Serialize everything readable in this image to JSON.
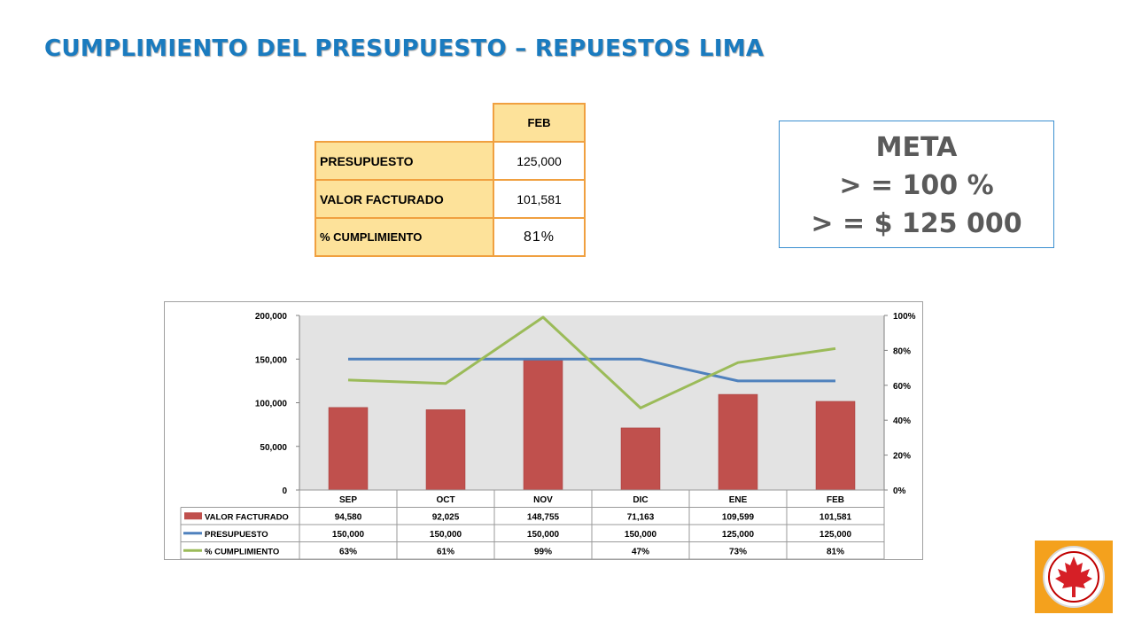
{
  "title": "CUMPLIMIENTO DEL PRESUPUESTO – REPUESTOS LIMA",
  "summary_table": {
    "month_header": "FEB",
    "rows": [
      {
        "label": "PRESUPUESTO",
        "value": "125,000"
      },
      {
        "label": "VALOR FACTURADO",
        "value": "101,581"
      },
      {
        "label": "% CUMPLIMIENTO",
        "value": "81%"
      }
    ]
  },
  "meta": {
    "line1": "META",
    "line2": "> = 100 %",
    "line3": "> = $ 125 000"
  },
  "colors": {
    "title": "#1a7bbf",
    "bar": "#c0504d",
    "budget_line": "#4f81bd",
    "pct_line": "#9bbb59",
    "table_header_fill": "#fde29a",
    "table_border": "#f0a040",
    "logo_bg": "#f4a11d"
  },
  "chart_data": {
    "type": "bar",
    "categories": [
      "SEP",
      "OCT",
      "NOV",
      "DIC",
      "ENE",
      "FEB"
    ],
    "series": [
      {
        "name": "VALOR FACTURADO",
        "type": "bar",
        "axis": "left",
        "values": [
          94580,
          92025,
          148755,
          71163,
          109599,
          101581
        ],
        "labels": [
          "94,580",
          "92,025",
          "148,755",
          "71,163",
          "109,599",
          "101,581"
        ]
      },
      {
        "name": "PRESUPUESTO",
        "type": "line",
        "axis": "left",
        "values": [
          150000,
          150000,
          150000,
          150000,
          125000,
          125000
        ],
        "labels": [
          "150,000",
          "150,000",
          "150,000",
          "150,000",
          "125,000",
          "125,000"
        ]
      },
      {
        "name": "% CUMPLIMIENTO",
        "type": "line",
        "axis": "right",
        "values": [
          63,
          61,
          99,
          47,
          73,
          81
        ],
        "labels": [
          "63%",
          "61%",
          "99%",
          "47%",
          "73%",
          "81%"
        ]
      }
    ],
    "left_axis": {
      "ylim": [
        0,
        200000
      ],
      "ticks": [
        "0",
        "50,000",
        "100,000",
        "150,000",
        "200,000"
      ]
    },
    "right_axis": {
      "ylim": [
        0,
        100
      ],
      "ticks": [
        "0%",
        "20%",
        "40%",
        "60%",
        "80%",
        "100%"
      ]
    },
    "grid": false,
    "legend": "data-table"
  }
}
